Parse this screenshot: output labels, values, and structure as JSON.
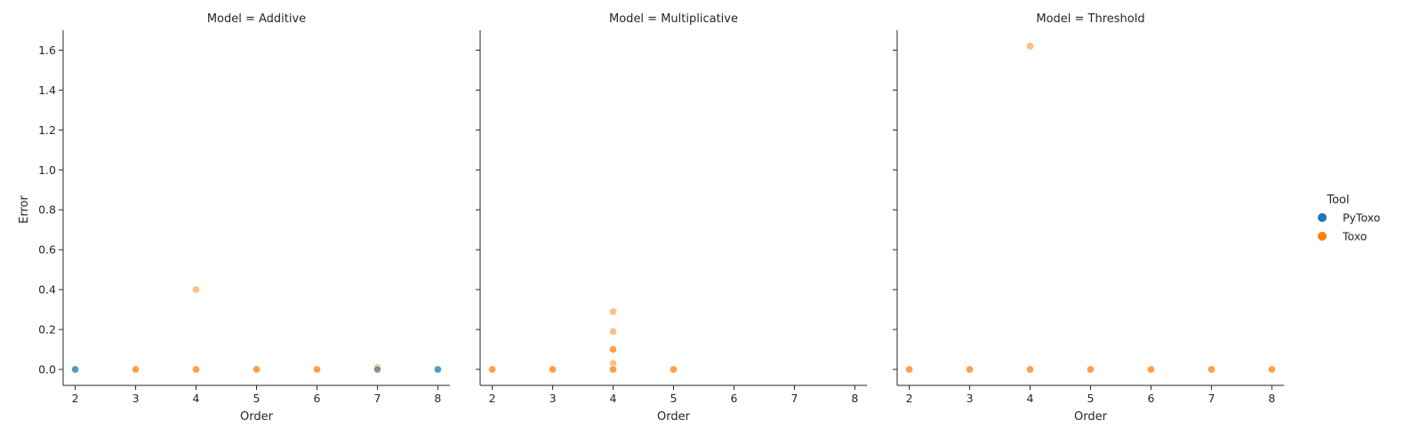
{
  "chart_data": {
    "type": "scatter",
    "facet_label_prefix": "Model = ",
    "xlabel": "Order",
    "ylabel": "Error",
    "xlim": [
      1.8,
      8.2
    ],
    "ylim": [
      -0.08,
      1.7
    ],
    "xticks": [
      2,
      3,
      4,
      5,
      6,
      7,
      8
    ],
    "yticks": [
      0.0,
      0.2,
      0.4,
      0.6,
      0.8,
      1.0,
      1.2,
      1.4,
      1.6
    ],
    "ytick_labels": [
      "0.0",
      "0.2",
      "0.4",
      "0.6",
      "0.8",
      "1.0",
      "1.2",
      "1.4",
      "1.6"
    ],
    "legend": {
      "title": "Tool",
      "placement": "right",
      "entries": [
        {
          "name": "PyToxo",
          "color": "#1f77b4"
        },
        {
          "name": "Toxo",
          "color": "#ff7f0e"
        }
      ]
    },
    "point_opacity": 0.5,
    "facets": [
      {
        "model": "Additive",
        "series": [
          {
            "name": "PyToxo",
            "points": [
              [
                2,
                0.0
              ],
              [
                2,
                0.0
              ],
              [
                7,
                0.0
              ],
              [
                8,
                0.0
              ],
              [
                8,
                0.0
              ]
            ]
          },
          {
            "name": "Toxo",
            "points": [
              [
                3,
                0.0
              ],
              [
                3,
                0.0
              ],
              [
                4,
                0.4
              ],
              [
                4,
                0.0
              ],
              [
                4,
                0.0
              ],
              [
                5,
                0.0
              ],
              [
                5,
                0.0
              ],
              [
                6,
                0.0
              ],
              [
                6,
                0.0
              ],
              [
                7,
                0.01
              ],
              [
                7,
                0.0
              ]
            ]
          }
        ]
      },
      {
        "model": "Multiplicative",
        "series": [
          {
            "name": "PyToxo",
            "points": []
          },
          {
            "name": "Toxo",
            "points": [
              [
                2,
                0.0
              ],
              [
                2,
                0.0
              ],
              [
                3,
                0.0
              ],
              [
                3,
                0.0
              ],
              [
                4,
                0.29
              ],
              [
                4,
                0.19
              ],
              [
                4,
                0.1
              ],
              [
                4,
                0.1
              ],
              [
                4,
                0.03
              ],
              [
                4,
                0.0
              ],
              [
                4,
                0.0
              ],
              [
                5,
                0.0
              ],
              [
                5,
                0.0
              ]
            ]
          }
        ]
      },
      {
        "model": "Threshold",
        "series": [
          {
            "name": "PyToxo",
            "points": []
          },
          {
            "name": "Toxo",
            "points": [
              [
                2,
                0.0
              ],
              [
                2,
                0.0
              ],
              [
                3,
                0.0
              ],
              [
                3,
                0.0
              ],
              [
                4,
                1.62
              ],
              [
                4,
                0.0
              ],
              [
                4,
                0.0
              ],
              [
                5,
                0.0
              ],
              [
                5,
                0.0
              ],
              [
                6,
                0.0
              ],
              [
                6,
                0.0
              ],
              [
                7,
                0.0
              ],
              [
                7,
                0.0
              ],
              [
                8,
                0.0
              ],
              [
                8,
                0.0
              ]
            ]
          }
        ]
      }
    ]
  }
}
